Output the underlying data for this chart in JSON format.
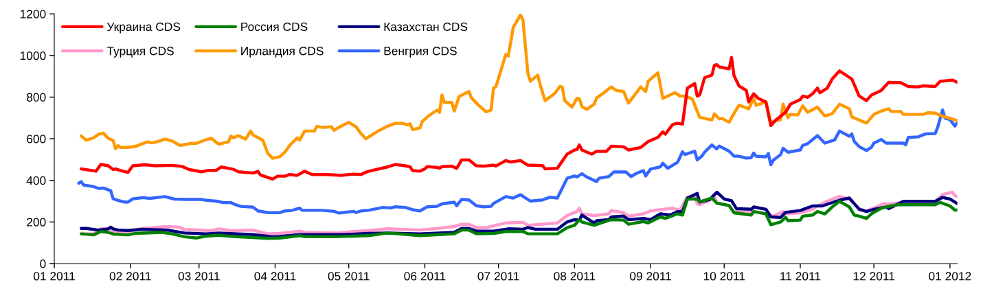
{
  "chart_data": {
    "type": "line",
    "legend": "top left",
    "grid": false,
    "marker": "none",
    "line_style": "solid",
    "xlim": [
      "2011-01-01",
      "2012-01-04"
    ],
    "ylim": [
      0,
      1200
    ],
    "yticks": [
      0,
      200,
      400,
      600,
      800,
      1000,
      1200
    ],
    "xticks": [
      {
        "value": "2011-01-01",
        "label": "01 2011"
      },
      {
        "value": "2011-02-01",
        "label": "02 2011"
      },
      {
        "value": "2011-03-01",
        "label": "03 2011"
      },
      {
        "value": "2011-04-01",
        "label": "04 2011"
      },
      {
        "value": "2011-05-01",
        "label": "05 2011"
      },
      {
        "value": "2011-06-01",
        "label": "06 2011"
      },
      {
        "value": "2011-07-01",
        "label": "07 2011"
      },
      {
        "value": "2011-08-01",
        "label": "08 2011"
      },
      {
        "value": "2011-09-01",
        "label": "09 2011"
      },
      {
        "value": "2011-10-01",
        "label": "10 2011"
      },
      {
        "value": "2011-11-01",
        "label": "11 2011"
      },
      {
        "value": "2011-12-01",
        "label": "12 2011"
      },
      {
        "value": "2012-01-01",
        "label": "01 2012"
      }
    ],
    "series": [
      {
        "name": "Украина CDS",
        "color": "#ff0000",
        "x": [
          "2011-01-12",
          "2011-01-18",
          "2011-01-20",
          "2011-01-23",
          "2011-01-25",
          "2011-01-26",
          "2011-01-28",
          "2011-01-31",
          "2011-02-02",
          "2011-02-07",
          "2011-02-11",
          "2011-02-18",
          "2011-02-22",
          "2011-02-25",
          "2011-03-02",
          "2011-03-05",
          "2011-03-08",
          "2011-03-10",
          "2011-03-15",
          "2011-03-17",
          "2011-03-23",
          "2011-03-25",
          "2011-03-26",
          "2011-03-31",
          "2011-04-02",
          "2011-04-05",
          "2011-04-07",
          "2011-04-10",
          "2011-04-13",
          "2011-04-16",
          "2011-04-22",
          "2011-04-28",
          "2011-05-03",
          "2011-05-06",
          "2011-05-08",
          "2011-05-09",
          "2011-05-17",
          "2011-05-20",
          "2011-05-24",
          "2011-05-26",
          "2011-05-27",
          "2011-05-30",
          "2011-06-01",
          "2011-06-02",
          "2011-06-06",
          "2011-06-07",
          "2011-06-08",
          "2011-06-12",
          "2011-06-14",
          "2011-06-16",
          "2011-06-19",
          "2011-06-22",
          "2011-06-25",
          "2011-06-29",
          "2011-06-30",
          "2011-07-04",
          "2011-07-06",
          "2011-07-10",
          "2011-07-13",
          "2011-07-19",
          "2011-07-20",
          "2011-07-25",
          "2011-07-29",
          "2011-08-01",
          "2011-08-02",
          "2011-08-03",
          "2011-08-04",
          "2011-08-08",
          "2011-08-10",
          "2011-08-14",
          "2011-08-16",
          "2011-08-21",
          "2011-08-23",
          "2011-08-28",
          "2011-08-31",
          "2011-09-04",
          "2011-09-06",
          "2011-09-07",
          "2011-09-10",
          "2011-09-12",
          "2011-09-14",
          "2011-09-16",
          "2011-09-19",
          "2011-09-20",
          "2011-09-21",
          "2011-09-23",
          "2011-09-26",
          "2011-09-27",
          "2011-09-28",
          "2011-09-29",
          "2011-10-03",
          "2011-10-04",
          "2011-10-05",
          "2011-10-07",
          "2011-10-10",
          "2011-10-11",
          "2011-10-13",
          "2011-10-15",
          "2011-10-18",
          "2011-10-20",
          "2011-10-22",
          "2011-10-26",
          "2011-10-28",
          "2011-11-01",
          "2011-11-02",
          "2011-11-04",
          "2011-11-06",
          "2011-11-08",
          "2011-11-09",
          "2011-11-12",
          "2011-11-14",
          "2011-11-17",
          "2011-11-22",
          "2011-11-25",
          "2011-11-28",
          "2011-11-30",
          "2011-12-04",
          "2011-12-07",
          "2011-12-12",
          "2011-12-15",
          "2011-12-19",
          "2011-12-21",
          "2011-12-26",
          "2011-12-28",
          "2012-01-02",
          "2012-01-04"
        ],
        "values": [
          455,
          444,
          477,
          470,
          452,
          455,
          447,
          438,
          470,
          475,
          470,
          472,
          467,
          452,
          441,
          448,
          448,
          464,
          453,
          441,
          435,
          443,
          426,
          406,
          420,
          420,
          428,
          424,
          444,
          428,
          428,
          424,
          430,
          428,
          439,
          443,
          465,
          476,
          470,
          465,
          447,
          444,
          455,
          466,
          462,
          458,
          466,
          468,
          458,
          498,
          498,
          470,
          468,
          473,
          469,
          495,
          488,
          495,
          473,
          471,
          455,
          458,
          526,
          546,
          548,
          570,
          546,
          526,
          539,
          539,
          564,
          561,
          546,
          558,
          586,
          607,
          633,
          622,
          668,
          674,
          670,
          843,
          865,
          805,
          810,
          893,
          906,
          953,
          956,
          945,
          936,
          991,
          903,
          854,
          832,
          777,
          816,
          793,
          777,
          663,
          689,
          727,
          766,
          788,
          805,
          799,
          816,
          843,
          821,
          843,
          887,
          926,
          887,
          805,
          783,
          810,
          832,
          871,
          869,
          851,
          849,
          854,
          851,
          876,
          882,
          871
        ]
      },
      {
        "name": "Россия CDS",
        "color": "#008000",
        "x": [
          "2011-01-12",
          "2011-01-17",
          "2011-01-20",
          "2011-01-23",
          "2011-01-25",
          "2011-01-31",
          "2011-02-03",
          "2011-02-14",
          "2011-02-18",
          "2011-02-23",
          "2011-02-28",
          "2011-03-04",
          "2011-03-09",
          "2011-03-16",
          "2011-03-23",
          "2011-03-29",
          "2011-04-03",
          "2011-04-11",
          "2011-04-13",
          "2011-04-25",
          "2011-05-09",
          "2011-05-17",
          "2011-05-30",
          "2011-06-13",
          "2011-06-16",
          "2011-06-19",
          "2011-06-22",
          "2011-06-29",
          "2011-07-04",
          "2011-07-11",
          "2011-07-13",
          "2011-07-25",
          "2011-07-29",
          "2011-08-01",
          "2011-08-03",
          "2011-08-04",
          "2011-08-09",
          "2011-08-16",
          "2011-08-21",
          "2011-08-23",
          "2011-08-29",
          "2011-08-31",
          "2011-09-05",
          "2011-09-07",
          "2011-09-12",
          "2011-09-14",
          "2011-09-16",
          "2011-09-20",
          "2011-09-21",
          "2011-09-26",
          "2011-09-28",
          "2011-10-03",
          "2011-10-05",
          "2011-10-12",
          "2011-10-13",
          "2011-10-18",
          "2011-10-20",
          "2011-10-24",
          "2011-10-26",
          "2011-10-27",
          "2011-11-01",
          "2011-11-02",
          "2011-11-06",
          "2011-11-08",
          "2011-11-11",
          "2011-11-14",
          "2011-11-17",
          "2011-11-21",
          "2011-11-23",
          "2011-11-25",
          "2011-11-28",
          "2011-11-30",
          "2011-12-04",
          "2011-12-08",
          "2011-12-11",
          "2011-12-26",
          "2011-12-28",
          "2012-01-01",
          "2012-01-03",
          "2012-01-04"
        ],
        "values": [
          143,
          138,
          154,
          150,
          142,
          138,
          145,
          150,
          143,
          129,
          123,
          132,
          136,
          129,
          125,
          121,
          123,
          134,
          130,
          129,
          134,
          147,
          134,
          143,
          161,
          161,
          143,
          145,
          154,
          154,
          143,
          143,
          173,
          184,
          211,
          200,
          184,
          211,
          209,
          189,
          202,
          195,
          224,
          217,
          239,
          233,
          310,
          310,
          296,
          315,
          290,
          279,
          244,
          233,
          250,
          239,
          187,
          200,
          222,
          206,
          209,
          228,
          233,
          250,
          239,
          272,
          299,
          272,
          233,
          228,
          217,
          239,
          266,
          277,
          283,
          283,
          294,
          277,
          257,
          257
        ]
      },
      {
        "name": "Казахстан CDS",
        "color": "#000080",
        "x": [
          "2011-01-12",
          "2011-01-14",
          "2011-01-19",
          "2011-01-23",
          "2011-01-24",
          "2011-01-25",
          "2011-01-27",
          "2011-01-31",
          "2011-02-06",
          "2011-02-16",
          "2011-02-23",
          "2011-03-04",
          "2011-03-09",
          "2011-03-23",
          "2011-03-31",
          "2011-04-03",
          "2011-04-11",
          "2011-04-20",
          "2011-04-29",
          "2011-05-09",
          "2011-05-17",
          "2011-05-30",
          "2011-06-13",
          "2011-06-16",
          "2011-06-19",
          "2011-06-22",
          "2011-06-29",
          "2011-07-05",
          "2011-07-11",
          "2011-07-13",
          "2011-07-16",
          "2011-07-25",
          "2011-07-29",
          "2011-08-01",
          "2011-08-03",
          "2011-08-04",
          "2011-08-09",
          "2011-08-10",
          "2011-08-15",
          "2011-08-16",
          "2011-08-21",
          "2011-08-23",
          "2011-08-29",
          "2011-09-01",
          "2011-09-05",
          "2011-09-09",
          "2011-09-12",
          "2011-09-14",
          "2011-09-16",
          "2011-09-20",
          "2011-09-21",
          "2011-09-25",
          "2011-09-28",
          "2011-10-01",
          "2011-10-04",
          "2011-10-06",
          "2011-10-12",
          "2011-10-13",
          "2011-10-18",
          "2011-10-20",
          "2011-10-24",
          "2011-10-26",
          "2011-11-01",
          "2011-11-06",
          "2011-11-10",
          "2011-11-17",
          "2011-11-21",
          "2011-11-25",
          "2011-11-28",
          "2011-12-01",
          "2011-12-06",
          "2011-12-07",
          "2011-12-13",
          "2011-12-26",
          "2011-12-29",
          "2012-01-01",
          "2012-01-04"
        ],
        "values": [
          169,
          169,
          161,
          167,
          175,
          167,
          161,
          159,
          165,
          161,
          147,
          143,
          147,
          139,
          129,
          130,
          139,
          139,
          139,
          145,
          147,
          143,
          150,
          169,
          169,
          156,
          156,
          167,
          165,
          173,
          165,
          165,
          200,
          211,
          209,
          233,
          195,
          206,
          211,
          224,
          228,
          211,
          217,
          211,
          239,
          233,
          250,
          250,
          315,
          337,
          296,
          307,
          343,
          310,
          302,
          264,
          261,
          272,
          261,
          224,
          222,
          246,
          255,
          277,
          277,
          305,
          315,
          261,
          250,
          261,
          272,
          264,
          299,
          299,
          318,
          310,
          288
        ]
      },
      {
        "name": "Турция CDS",
        "color": "#ff99cc",
        "x": [
          "2011-01-12",
          "2011-01-17",
          "2011-01-20",
          "2011-01-24",
          "2011-01-25",
          "2011-01-31",
          "2011-02-06",
          "2011-02-16",
          "2011-02-21",
          "2011-02-23",
          "2011-03-06",
          "2011-03-09",
          "2011-03-14",
          "2011-03-23",
          "2011-03-29",
          "2011-04-03",
          "2011-04-11",
          "2011-04-13",
          "2011-04-26",
          "2011-05-03",
          "2011-05-09",
          "2011-05-17",
          "2011-05-30",
          "2011-06-06",
          "2011-06-13",
          "2011-06-16",
          "2011-06-19",
          "2011-06-22",
          "2011-06-26",
          "2011-07-04",
          "2011-07-11",
          "2011-07-13",
          "2011-07-25",
          "2011-07-29",
          "2011-08-02",
          "2011-08-03",
          "2011-08-04",
          "2011-08-09",
          "2011-08-15",
          "2011-08-16",
          "2011-08-21",
          "2011-08-23",
          "2011-08-29",
          "2011-09-01",
          "2011-09-06",
          "2011-09-10",
          "2011-09-13",
          "2011-09-16",
          "2011-09-19",
          "2011-09-20",
          "2011-09-21",
          "2011-09-26",
          "2011-09-27",
          "2011-09-28",
          "2011-10-03",
          "2011-10-05",
          "2011-10-12",
          "2011-10-13",
          "2011-10-18",
          "2011-10-20",
          "2011-10-22",
          "2011-10-25",
          "2011-10-26",
          "2011-11-01",
          "2011-11-06",
          "2011-11-08",
          "2011-11-13",
          "2011-11-17",
          "2011-11-21",
          "2011-11-25",
          "2011-11-28",
          "2011-12-02",
          "2011-12-05",
          "2011-12-07",
          "2011-12-13",
          "2011-12-26",
          "2011-12-29",
          "2012-01-02",
          "2012-01-03",
          "2012-01-04"
        ],
        "values": [
          143,
          143,
          167,
          167,
          154,
          154,
          169,
          178,
          175,
          164,
          158,
          167,
          158,
          161,
          143,
          145,
          156,
          150,
          147,
          154,
          158,
          167,
          161,
          169,
          178,
          189,
          189,
          173,
          173,
          195,
          198,
          184,
          195,
          231,
          250,
          266,
          239,
          231,
          239,
          255,
          244,
          228,
          239,
          253,
          261,
          266,
          257,
          319,
          323,
          288,
          283,
          310,
          321,
          294,
          277,
          250,
          244,
          272,
          261,
          228,
          233,
          250,
          239,
          244,
          261,
          277,
          305,
          323,
          310,
          264,
          253,
          272,
          288,
          286,
          294,
          294,
          332,
          343,
          326,
          323
        ]
      },
      {
        "name": "Ирландия CDS",
        "color": "#ff9900",
        "x": [
          "2011-01-12",
          "2011-01-14",
          "2011-01-17",
          "2011-01-19",
          "2011-01-21",
          "2011-01-23",
          "2011-01-25",
          "2011-01-26",
          "2011-01-27",
          "2011-01-28",
          "2011-01-31",
          "2011-02-03",
          "2011-02-08",
          "2011-02-10",
          "2011-02-13",
          "2011-02-15",
          "2011-02-18",
          "2011-02-21",
          "2011-02-22",
          "2011-02-26",
          "2011-02-28",
          "2011-03-04",
          "2011-03-06",
          "2011-03-09",
          "2011-03-13",
          "2011-03-14",
          "2011-03-15",
          "2011-03-17",
          "2011-03-20",
          "2011-03-22",
          "2011-03-23",
          "2011-03-27",
          "2011-03-29",
          "2011-03-31",
          "2011-04-03",
          "2011-04-05",
          "2011-04-07",
          "2011-04-10",
          "2011-04-11",
          "2011-04-13",
          "2011-04-17",
          "2011-04-18",
          "2011-04-20",
          "2011-04-24",
          "2011-04-25",
          "2011-04-27",
          "2011-05-01",
          "2011-05-04",
          "2011-05-06",
          "2011-05-08",
          "2011-05-13",
          "2011-05-17",
          "2011-05-20",
          "2011-05-23",
          "2011-05-25",
          "2011-05-26",
          "2011-05-27",
          "2011-05-30",
          "2011-05-31",
          "2011-06-02",
          "2011-06-06",
          "2011-06-07",
          "2011-06-08",
          "2011-06-09",
          "2011-06-12",
          "2011-06-13",
          "2011-06-15",
          "2011-06-19",
          "2011-06-20",
          "2011-06-23",
          "2011-06-26",
          "2011-06-28",
          "2011-06-29",
          "2011-06-30",
          "2011-07-04",
          "2011-07-05",
          "2011-07-06",
          "2011-07-07",
          "2011-07-10",
          "2011-07-11",
          "2011-07-13",
          "2011-07-14",
          "2011-07-17",
          "2011-07-18",
          "2011-07-20",
          "2011-07-24",
          "2011-07-26",
          "2011-07-27",
          "2011-07-28",
          "2011-07-31",
          "2011-08-02",
          "2011-08-03",
          "2011-08-04",
          "2011-08-06",
          "2011-08-09",
          "2011-08-10",
          "2011-08-13",
          "2011-08-16",
          "2011-08-18",
          "2011-08-21",
          "2011-08-23",
          "2011-08-28",
          "2011-08-30",
          "2011-08-31",
          "2011-09-04",
          "2011-09-06",
          "2011-09-11",
          "2011-09-13",
          "2011-09-15",
          "2011-09-18",
          "2011-09-21",
          "2011-09-26",
          "2011-09-27",
          "2011-09-29",
          "2011-09-30",
          "2011-10-03",
          "2011-10-04",
          "2011-10-07",
          "2011-10-11",
          "2011-10-13",
          "2011-10-14",
          "2011-10-18",
          "2011-10-20",
          "2011-10-24",
          "2011-10-25",
          "2011-10-27",
          "2011-10-28",
          "2011-10-31",
          "2011-11-02",
          "2011-11-04",
          "2011-11-08",
          "2011-11-11",
          "2011-11-14",
          "2011-11-17",
          "2011-11-21",
          "2011-11-22",
          "2011-11-28",
          "2011-12-01",
          "2011-12-04",
          "2011-12-07",
          "2011-12-08",
          "2011-12-12",
          "2011-12-13",
          "2011-12-21",
          "2011-12-23",
          "2011-12-26",
          "2011-12-28",
          "2012-01-01",
          "2012-01-04"
        ],
        "values": [
          613,
          593,
          604,
          621,
          627,
          602,
          591,
          552,
          567,
          558,
          558,
          563,
          585,
          580,
          589,
          598,
          589,
          569,
          569,
          578,
          578,
          596,
          602,
          574,
          585,
          613,
          604,
          615,
          598,
          637,
          618,
          593,
          530,
          506,
          514,
          536,
          569,
          604,
          593,
          637,
          637,
          659,
          655,
          657,
          640,
          655,
          679,
          657,
          624,
          600,
          637,
          661,
          674,
          674,
          666,
          672,
          644,
          652,
          683,
          705,
          738,
          727,
          810,
          774,
          774,
          733,
          803,
          827,
          796,
          760,
          729,
          738,
          843,
          851,
          1005,
          997,
          1063,
          1134,
          1195,
          1170,
          915,
          876,
          906,
          860,
          783,
          818,
          851,
          849,
          783,
          752,
          794,
          792,
          755,
          741,
          766,
          796,
          821,
          849,
          832,
          827,
          771,
          849,
          827,
          876,
          917,
          794,
          821,
          805,
          805,
          791,
          703,
          690,
          720,
          695,
          698,
          679,
          701,
          761,
          744,
          794,
          761,
          777,
          679,
          692,
          766,
          701,
          717,
          714,
          758,
          727,
          752,
          709,
          720,
          766,
          744,
          705,
          675,
          717,
          733,
          744,
          731,
          731,
          717,
          717,
          725,
          723,
          712,
          698,
          687
        ]
      },
      {
        "name": "Венгрия CDS",
        "color": "#3366ff",
        "x": [
          "2011-01-11",
          "2011-01-12",
          "2011-01-13",
          "2011-01-17",
          "2011-01-19",
          "2011-01-21",
          "2011-01-24",
          "2011-01-25",
          "2011-01-27",
          "2011-01-29",
          "2011-01-31",
          "2011-02-02",
          "2011-02-06",
          "2011-02-09",
          "2011-02-15",
          "2011-02-19",
          "2011-02-23",
          "2011-03-02",
          "2011-03-04",
          "2011-03-08",
          "2011-03-11",
          "2011-03-14",
          "2011-03-16",
          "2011-03-18",
          "2011-03-23",
          "2011-03-25",
          "2011-03-29",
          "2011-04-03",
          "2011-04-05",
          "2011-04-08",
          "2011-04-11",
          "2011-04-12",
          "2011-04-20",
          "2011-04-25",
          "2011-04-27",
          "2011-05-03",
          "2011-05-04",
          "2011-05-06",
          "2011-05-09",
          "2011-05-15",
          "2011-05-18",
          "2011-05-20",
          "2011-05-24",
          "2011-05-27",
          "2011-05-30",
          "2011-06-02",
          "2011-06-06",
          "2011-06-08",
          "2011-06-13",
          "2011-06-14",
          "2011-06-16",
          "2011-06-19",
          "2011-06-22",
          "2011-06-25",
          "2011-06-28",
          "2011-06-29",
          "2011-07-04",
          "2011-07-07",
          "2011-07-10",
          "2011-07-14",
          "2011-07-19",
          "2011-07-22",
          "2011-07-25",
          "2011-07-29",
          "2011-08-01",
          "2011-08-02",
          "2011-08-04",
          "2011-08-06",
          "2011-08-10",
          "2011-08-11",
          "2011-08-15",
          "2011-08-17",
          "2011-08-22",
          "2011-08-24",
          "2011-08-26",
          "2011-08-29",
          "2011-08-30",
          "2011-09-01",
          "2011-09-05",
          "2011-09-06",
          "2011-09-08",
          "2011-09-12",
          "2011-09-14",
          "2011-09-15",
          "2011-09-19",
          "2011-09-20",
          "2011-09-22",
          "2011-09-23",
          "2011-09-26",
          "2011-09-28",
          "2011-09-29",
          "2011-10-03",
          "2011-10-05",
          "2011-10-07",
          "2011-10-10",
          "2011-10-12",
          "2011-10-13",
          "2011-10-14",
          "2011-10-18",
          "2011-10-19",
          "2011-10-20",
          "2011-10-21",
          "2011-10-24",
          "2011-10-25",
          "2011-10-27",
          "2011-11-01",
          "2011-11-02",
          "2011-11-04",
          "2011-11-08",
          "2011-11-11",
          "2011-11-15",
          "2011-11-17",
          "2011-11-21",
          "2011-11-22",
          "2011-11-23",
          "2011-11-25",
          "2011-11-28",
          "2011-11-30",
          "2011-12-01",
          "2011-12-04",
          "2011-12-06",
          "2011-12-13",
          "2011-12-14",
          "2011-12-15",
          "2011-12-19",
          "2011-12-22",
          "2011-12-26",
          "2011-12-27",
          "2011-12-29",
          "2011-12-30",
          "2012-01-01",
          "2012-01-03",
          "2012-01-04"
        ],
        "values": [
          386,
          394,
          377,
          370,
          361,
          363,
          350,
          311,
          304,
          297,
          295,
          311,
          317,
          313,
          322,
          310,
          308,
          308,
          304,
          300,
          293,
          293,
          282,
          275,
          271,
          253,
          245,
          245,
          253,
          256,
          267,
          256,
          256,
          251,
          243,
          251,
          245,
          253,
          256,
          270,
          267,
          273,
          270,
          259,
          253,
          273,
          275,
          287,
          295,
          278,
          308,
          306,
          278,
          273,
          275,
          289,
          322,
          315,
          331,
          300,
          306,
          319,
          315,
          410,
          421,
          416,
          432,
          416,
          394,
          410,
          418,
          440,
          440,
          418,
          432,
          447,
          421,
          454,
          465,
          482,
          458,
          487,
          537,
          524,
          540,
          498,
          518,
          535,
          570,
          551,
          565,
          540,
          516,
          516,
          507,
          509,
          531,
          516,
          513,
          529,
          475,
          496,
          524,
          554,
          535,
          546,
          568,
          576,
          615,
          579,
          594,
          637,
          612,
          623,
          587,
          562,
          543,
          559,
          579,
          596,
          579,
          579,
          571,
          606,
          609,
          623,
          625,
          655,
          738,
          699,
          692,
          661,
          677
        ]
      }
    ]
  }
}
